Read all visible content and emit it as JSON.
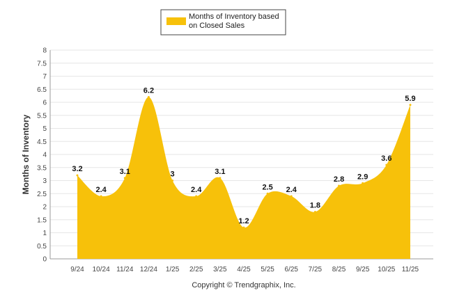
{
  "chart_data": {
    "type": "area",
    "title": "",
    "xlabel": "",
    "ylabel": "Months of Inventory",
    "ylim": [
      0,
      8
    ],
    "yticks": [
      "0",
      "0.5",
      "1",
      "1.5",
      "2",
      "2.5",
      "3",
      "3.5",
      "4",
      "4.5",
      "5",
      "5.5",
      "6",
      "6.5",
      "7",
      "7.5",
      "8"
    ],
    "grid": true,
    "legend_position": "top-center",
    "categories": [
      "9/24",
      "10/24",
      "11/24",
      "12/24",
      "1/25",
      "2/25",
      "3/25",
      "4/25",
      "5/25",
      "6/25",
      "7/25",
      "8/25",
      "9/25",
      "10/25",
      "11/25"
    ],
    "series": [
      {
        "name": "Months of Inventory based on Closed Sales",
        "legend_lines": [
          "Months of Inventory based",
          "on Closed Sales"
        ],
        "color": "#f7c10a",
        "values": [
          3.2,
          2.4,
          3.1,
          6.2,
          3,
          2.4,
          3.1,
          1.2,
          2.5,
          2.4,
          1.8,
          2.8,
          2.9,
          3.6,
          5.9
        ],
        "labels": [
          "3.2",
          "2.4",
          "3.1",
          "6.2",
          "3",
          "2.4",
          "3.1",
          "1.2",
          "2.5",
          "2.4",
          "1.8",
          "2.8",
          "2.9",
          "3.6",
          "5.9"
        ]
      }
    ]
  },
  "footer": {
    "copyright": "Copyright © Trendgraphix, Inc."
  }
}
